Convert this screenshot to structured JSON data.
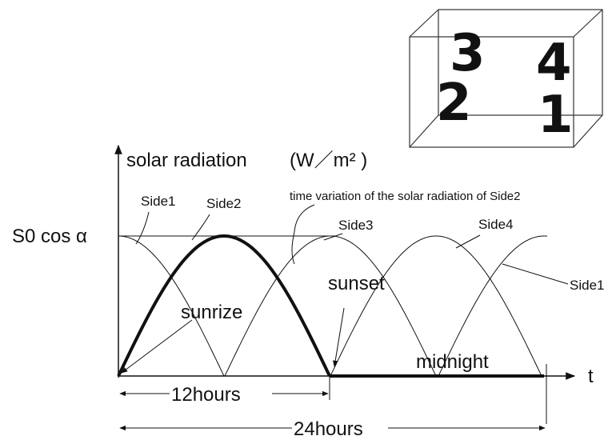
{
  "y_axis_label": "solar radiation",
  "unit": "(W／m² )",
  "x_axis_label": "t",
  "peak_label": "S0 cos α",
  "curve_labels": [
    "Side1",
    "Side2",
    "Side3",
    "Side4",
    "Side1"
  ],
  "annotation": "time variation of the solar radiation of Side2",
  "events": [
    "sunrize",
    "sunset",
    "midnight"
  ],
  "durations": [
    "12hours",
    "24hours"
  ],
  "cube_labels": [
    "3",
    "4",
    "2",
    "1"
  ]
}
